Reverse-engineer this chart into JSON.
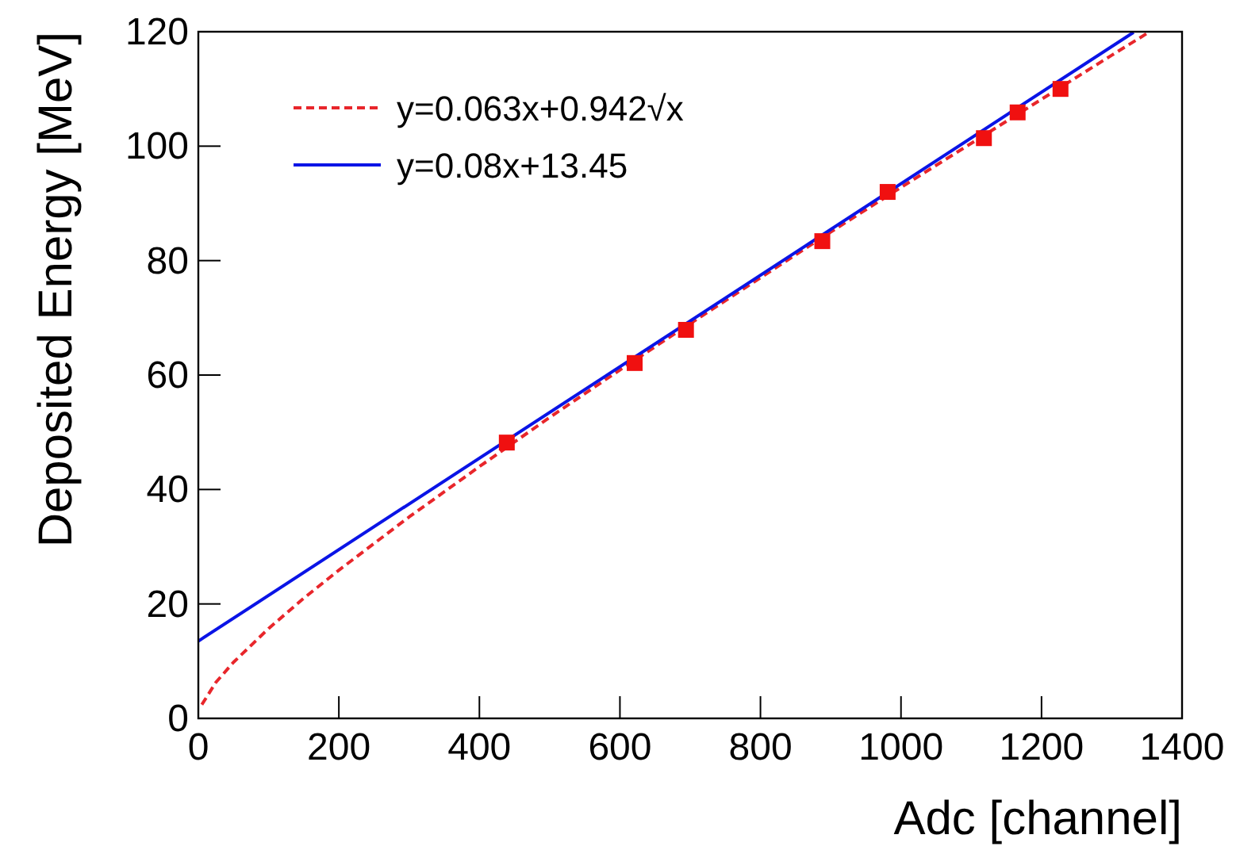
{
  "chart_data": {
    "type": "scatter",
    "xlabel": "Adc [channel]",
    "ylabel": "Deposited Energy [MeV]",
    "xlim": [
      0,
      1400
    ],
    "ylim": [
      0,
      120
    ],
    "xticks": [
      0,
      200,
      400,
      600,
      800,
      1000,
      1200,
      1400
    ],
    "yticks": [
      0,
      20,
      40,
      60,
      80,
      100,
      120
    ],
    "grid": false,
    "legend": "top left",
    "series": [
      {
        "name": "y=0.063x+0.942√x",
        "type": "line",
        "line_style": "dashed",
        "color": "#e8262b",
        "x": [
          5,
          25,
          50,
          100,
          150,
          200,
          300,
          400,
          500,
          600,
          700,
          800,
          900,
          1000,
          1100,
          1200,
          1300,
          1350
        ],
        "values": [
          2.4,
          6.3,
          9.8,
          15.7,
          21.0,
          25.9,
          35.2,
          44.0,
          52.6,
          60.9,
          69.0,
          77.0,
          85.0,
          92.8,
          100.5,
          108.2,
          115.9,
          119.7
        ]
      },
      {
        "name": "y=0.08x+13.45",
        "type": "line",
        "line_style": "solid",
        "color": "#0a14e6",
        "x": [
          0,
          1331
        ],
        "values": [
          13.5,
          119.9
        ]
      },
      {
        "type": "scatter",
        "marker": "square",
        "color": "#f01010",
        "x": [
          439,
          621,
          694,
          888,
          981,
          1118,
          1166,
          1227
        ],
        "values": [
          48.2,
          62.1,
          67.9,
          83.4,
          92,
          101.4,
          105.9,
          110
        ]
      }
    ]
  }
}
